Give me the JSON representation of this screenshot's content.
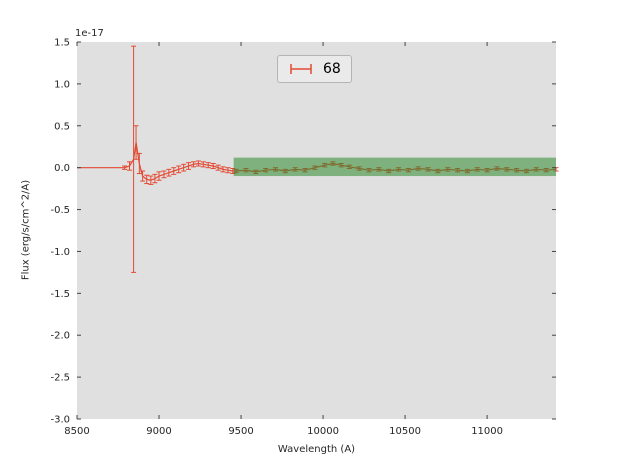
{
  "chart_data": {
    "type": "line",
    "title": "",
    "xlabel": "Wavelength (A)",
    "ylabel": "Flux (erg/s/cm^2/A)",
    "y_offset_label": "1e-17",
    "xlim": [
      8500,
      11420
    ],
    "ylim": [
      -3.0,
      1.5
    ],
    "xticks": [
      8500,
      9000,
      9500,
      10000,
      10500,
      11000
    ],
    "yticks": [
      1.5,
      1.0,
      0.5,
      0.0,
      -0.5,
      -1.0,
      -1.5,
      -2.0,
      -2.5,
      -3.0
    ],
    "grid": false,
    "plot_background": "#e0e0e0",
    "legend": {
      "label": "68",
      "position": "upper center",
      "marker_color": "#E24A33"
    },
    "band": {
      "x_start": 9455,
      "x_end": 11420,
      "y_low": -0.1,
      "y_high": 0.12,
      "color": "#2E8B2E",
      "opacity": 0.55
    },
    "series": [
      {
        "name": "spectrum",
        "type": "errorbar-line",
        "color": "#E24A33",
        "x": [
          8500,
          8560,
          8620,
          8680,
          8740,
          8790,
          8820,
          8845,
          8860,
          8880,
          8900,
          8925,
          8950,
          8975,
          9000,
          9030,
          9060,
          9090,
          9120,
          9150,
          9180,
          9210,
          9240,
          9270,
          9300,
          9330,
          9360,
          9390,
          9420,
          9450,
          9470,
          9530,
          9590,
          9650,
          9710,
          9770,
          9830,
          9890,
          9950,
          10010,
          10060,
          10110,
          10160,
          10220,
          10280,
          10340,
          10400,
          10460,
          10520,
          10580,
          10640,
          10700,
          10760,
          10820,
          10880,
          10940,
          11000,
          11060,
          11120,
          11180,
          11240,
          11300,
          11360,
          11420
        ],
        "y": [
          0,
          0,
          0,
          0,
          0,
          0,
          0.02,
          0.1,
          0.3,
          0.05,
          -0.1,
          -0.14,
          -0.15,
          -0.13,
          -0.1,
          -0.08,
          -0.06,
          -0.04,
          -0.02,
          0.0,
          0.02,
          0.04,
          0.05,
          0.04,
          0.03,
          0.02,
          0.0,
          -0.02,
          -0.03,
          -0.04,
          -0.04,
          -0.03,
          -0.05,
          -0.03,
          -0.02,
          -0.04,
          -0.02,
          -0.03,
          0.0,
          0.03,
          0.05,
          0.03,
          0.01,
          -0.01,
          -0.03,
          -0.02,
          -0.04,
          -0.02,
          -0.03,
          -0.01,
          -0.02,
          -0.04,
          -0.02,
          -0.03,
          -0.04,
          -0.02,
          -0.03,
          -0.01,
          -0.02,
          -0.03,
          -0.04,
          -0.02,
          -0.03,
          -0.02
        ],
        "yerr": [
          0,
          0,
          0,
          0,
          0,
          0.02,
          0.05,
          1.35,
          0.2,
          0.12,
          0.06,
          0.05,
          0.05,
          0.05,
          0.05,
          0.04,
          0.04,
          0.04,
          0.04,
          0.04,
          0.04,
          0.03,
          0.03,
          0.03,
          0.03,
          0.03,
          0.03,
          0.03,
          0.03,
          0.03,
          0.02,
          0.02,
          0.02,
          0.02,
          0.02,
          0.02,
          0.02,
          0.02,
          0.02,
          0.02,
          0.02,
          0.02,
          0.02,
          0.02,
          0.02,
          0.02,
          0.02,
          0.02,
          0.02,
          0.02,
          0.02,
          0.02,
          0.02,
          0.02,
          0.02,
          0.02,
          0.02,
          0.02,
          0.02,
          0.02,
          0.02,
          0.02,
          0.02,
          0.02
        ]
      }
    ]
  }
}
